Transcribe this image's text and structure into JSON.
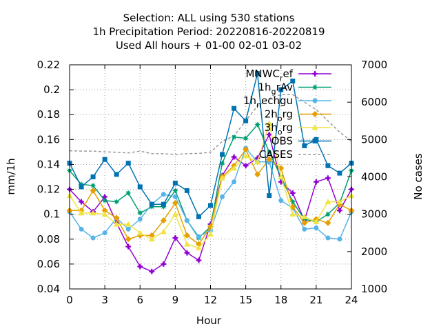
{
  "chart_data": {
    "type": "line",
    "title_lines": [
      "Selection: ALL using   530 stations",
      "1h Precipitation   Period: 20220816-20220819",
      "Used  All hours  + 01-00 02-01 03-02"
    ],
    "xlabel": "Hour",
    "ylabel": "mm/1h",
    "y2label": "No cases",
    "xlim": [
      0,
      24
    ],
    "ylim": [
      0.04,
      0.22
    ],
    "y2lim": [
      1000,
      7000
    ],
    "xticks": [
      0,
      3,
      6,
      9,
      12,
      15,
      18,
      21,
      24
    ],
    "yticks": [
      0.04,
      0.06,
      0.08,
      0.1,
      0.12,
      0.14,
      0.16,
      0.18,
      0.2,
      0.22
    ],
    "yticklabels": [
      "0.04",
      "0.06",
      "0.08",
      "0.1",
      "0.12",
      "0.14",
      "0.16",
      "0.18",
      "0.2",
      "0.22"
    ],
    "y2ticks": [
      1000,
      2000,
      3000,
      4000,
      5000,
      6000,
      7000
    ],
    "grid": true,
    "legend_position": "top-right",
    "x": [
      0,
      1,
      2,
      3,
      4,
      5,
      6,
      7,
      8,
      9,
      10,
      11,
      12,
      13,
      14,
      15,
      16,
      17,
      18,
      19,
      20,
      21,
      22,
      23,
      24
    ],
    "series": [
      {
        "name": "MNWC_ref",
        "legend_main": "MNWC",
        "legend_sub": "r",
        "legend_tail": "ef",
        "color": "#9400d3",
        "marker": "plus",
        "values": [
          0.12,
          0.11,
          0.102,
          0.114,
          0.093,
          0.074,
          0.058,
          0.054,
          0.06,
          0.081,
          0.069,
          0.063,
          0.092,
          0.131,
          0.146,
          0.139,
          0.145,
          0.164,
          0.126,
          0.117,
          0.095,
          0.126,
          0.129,
          0.103,
          0.12
        ]
      },
      {
        "name": "1h_grAv",
        "legend_main": "1h",
        "legend_sub": "g",
        "legend_tail": "rAv",
        "color": "#009e73",
        "marker": "star",
        "values": [
          0.135,
          0.124,
          0.123,
          0.111,
          0.11,
          0.117,
          0.101,
          0.106,
          0.106,
          0.119,
          0.095,
          0.081,
          0.09,
          0.141,
          0.162,
          0.161,
          0.172,
          0.15,
          0.13,
          0.11,
          0.096,
          0.094,
          0.1,
          0.109,
          0.135
        ]
      },
      {
        "name": "1h_nechgu",
        "legend_main": "1h",
        "legend_sub": "n",
        "legend_tail": "echgu",
        "color": "#56b4e9",
        "marker": "circle",
        "values": [
          0.102,
          0.088,
          0.081,
          0.085,
          0.097,
          0.088,
          0.096,
          0.108,
          0.116,
          0.114,
          0.095,
          0.082,
          0.087,
          0.114,
          0.126,
          0.153,
          0.142,
          0.142,
          0.111,
          0.105,
          0.088,
          0.089,
          0.081,
          0.08,
          0.102
        ]
      },
      {
        "name": "2h_org",
        "legend_main": "2h",
        "legend_sub": "o",
        "legend_tail": "rg",
        "color": "#e69f00",
        "marker": "diamond",
        "values": [
          0.103,
          0.103,
          0.119,
          0.103,
          0.097,
          0.08,
          0.083,
          0.083,
          0.095,
          0.109,
          0.083,
          0.076,
          0.09,
          0.13,
          0.139,
          0.152,
          0.132,
          0.144,
          0.137,
          0.106,
          0.093,
          0.096,
          0.093,
          0.108,
          0.103
        ]
      },
      {
        "name": "3h_org",
        "legend_main": "3h",
        "legend_sub": "o",
        "legend_tail": "rg",
        "color": "#f0e442",
        "marker": "triangle",
        "values": [
          0.115,
          0.101,
          0.101,
          0.1,
          0.092,
          0.092,
          0.085,
          0.08,
          0.086,
          0.1,
          0.076,
          0.073,
          0.084,
          0.129,
          0.137,
          0.147,
          0.142,
          0.173,
          0.13,
          0.1,
          0.098,
          0.094,
          0.11,
          0.11,
          0.115
        ]
      },
      {
        "name": "OBS",
        "legend_main": "OBS",
        "legend_sub": "",
        "legend_tail": "",
        "color": "#0072b2",
        "marker": "square",
        "values": [
          0.141,
          0.122,
          0.13,
          0.144,
          0.132,
          0.141,
          0.122,
          0.108,
          0.108,
          0.125,
          0.119,
          0.098,
          0.107,
          0.148,
          0.185,
          0.175,
          0.213,
          0.115,
          0.2,
          0.207,
          0.155,
          0.16,
          0.139,
          0.133,
          0.141
        ]
      }
    ],
    "cases": {
      "name": "CASES",
      "color": "#999999",
      "axis": "right",
      "values": [
        4700,
        4690,
        4690,
        4670,
        4660,
        4640,
        4690,
        4620,
        4620,
        4600,
        4620,
        4630,
        4660,
        4950,
        5100,
        5500,
        5900,
        6100,
        6200,
        6200,
        6000,
        5800,
        5500,
        5200,
        4950
      ]
    }
  }
}
